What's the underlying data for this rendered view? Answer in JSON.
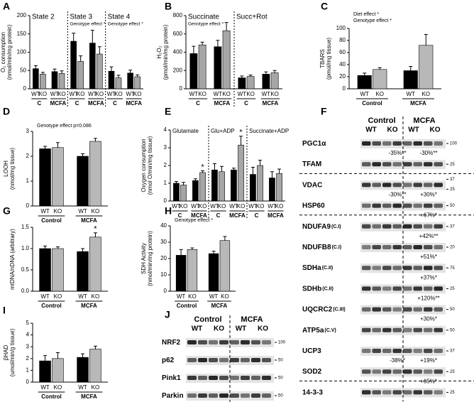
{
  "chart_data": [
    {
      "panel": "A",
      "type": "bar",
      "ylabel": [
        "O₂ consumption",
        "(nmol/min/mg protein)"
      ],
      "sections": [
        "State 2",
        "State 3",
        "State 4"
      ],
      "section_notes": [
        null,
        "Genotype effect *",
        "Genotype effect *"
      ],
      "categories": [
        "C",
        "MCFA",
        "C",
        "MCFA",
        "C",
        "MCFA"
      ],
      "series": [
        {
          "name": "WT",
          "color": "#000000",
          "values": [
            55,
            47,
            130,
            125,
            48,
            43
          ],
          "errors": [
            8,
            7,
            22,
            35,
            12,
            8
          ]
        },
        {
          "name": "KO",
          "color": "#a6a6a6",
          "values": [
            40,
            42,
            75,
            95,
            30,
            33
          ],
          "errors": [
            5,
            7,
            15,
            20,
            7,
            5
          ]
        }
      ],
      "ylim": [
        0,
        200
      ],
      "yticks": [
        0,
        50,
        100,
        150,
        200
      ]
    },
    {
      "panel": "B",
      "type": "bar",
      "ylabel": [
        "H₂O₂",
        "(pmol/min/mg protein)"
      ],
      "sections": [
        "Succinate",
        "Succ+Rot"
      ],
      "section_notes": [
        "Genotype effect *",
        null
      ],
      "categories": [
        "C",
        "MCFA",
        "C",
        "MCFA"
      ],
      "series": [
        {
          "name": "WT",
          "color": "#000000",
          "values": [
            385,
            460,
            120,
            160
          ],
          "errors": [
            80,
            70,
            20,
            25
          ]
        },
        {
          "name": "KO",
          "color": "#a6a6a6",
          "values": [
            480,
            635,
            135,
            175
          ],
          "errors": [
            30,
            90,
            15,
            25
          ]
        }
      ],
      "ylim": [
        0,
        800
      ],
      "yticks": [
        0,
        200,
        400,
        600,
        800
      ]
    },
    {
      "panel": "C",
      "type": "bar",
      "ylabel": [
        "TBARS",
        "(pmol/mg tissue)"
      ],
      "notes": [
        "Diet effect *",
        "Genotype effect *"
      ],
      "categories": [
        "Control",
        "MCFA"
      ],
      "series": [
        {
          "name": "WT",
          "color": "#000000",
          "values": [
            22,
            30
          ],
          "errors": [
            4,
            7
          ]
        },
        {
          "name": "KO",
          "color": "#b8b8b8",
          "values": [
            32,
            72
          ],
          "errors": [
            3,
            18
          ]
        }
      ],
      "ylim": [
        0,
        100
      ],
      "yticks": [
        0,
        20,
        40,
        60,
        80,
        100
      ]
    },
    {
      "panel": "D",
      "type": "bar",
      "ylabel": [
        "LOOH",
        "(nmol/mg tissue)"
      ],
      "notes": [
        "Genotype effect p=0.086"
      ],
      "categories": [
        "Control",
        "MCFA"
      ],
      "series": [
        {
          "name": "WT",
          "color": "#000000",
          "values": [
            2.3,
            2.0
          ],
          "errors": [
            0.1,
            0.1
          ]
        },
        {
          "name": "KO",
          "color": "#b8b8b8",
          "values": [
            2.35,
            2.6
          ],
          "errors": [
            0.2,
            0.12
          ]
        }
      ],
      "ylim": [
        0,
        3
      ],
      "yticks": [
        0,
        1,
        2,
        3
      ]
    },
    {
      "panel": "E",
      "type": "bar",
      "ylabel": [
        "Oxygen consumption",
        "(nmol O/min/mg tissue)"
      ],
      "sections": [
        "Glutamate",
        "Glu+ADP",
        "Succinate+ADP"
      ],
      "categories": [
        "C",
        "MCFA",
        "C",
        "MCFA",
        "C",
        "MCFA"
      ],
      "series": [
        {
          "name": "WT",
          "color": "#000000",
          "values": [
            1.0,
            1.15,
            1.75,
            1.75,
            1.5,
            1.3
          ],
          "errors": [
            0.1,
            0.1,
            0.35,
            0.1,
            0.4,
            0.35
          ]
        },
        {
          "name": "KO",
          "color": "#a6a6a6",
          "values": [
            0.9,
            1.6,
            1.65,
            3.15,
            2.0,
            1.55
          ],
          "errors": [
            0.15,
            0.1,
            0.3,
            0.5,
            0.3,
            0.25
          ],
          "stars": [
            null,
            "*",
            null,
            "*",
            null,
            null
          ]
        }
      ],
      "ylim": [
        0,
        4
      ],
      "yticks": [
        0,
        1,
        2,
        3,
        4
      ]
    },
    {
      "panel": "G",
      "type": "bar",
      "ylabel": [
        "mtDNA/nDNA (arbitrary)"
      ],
      "categories": [
        "Control",
        "MCFA"
      ],
      "series": [
        {
          "name": "WT",
          "color": "#000000",
          "values": [
            1.0,
            0.93
          ],
          "errors": [
            0.06,
            0.07
          ]
        },
        {
          "name": "KO",
          "color": "#b8b8b8",
          "values": [
            1.0,
            1.27
          ],
          "errors": [
            0.04,
            0.1
          ],
          "stars": [
            null,
            "*"
          ]
        }
      ],
      "ylim": [
        0,
        1.5
      ],
      "yticks": [
        {
          "value": 0,
          "label": "0.0"
        },
        0.5,
        {
          "value": 1,
          "label": "1.0"
        },
        1.5
      ]
    },
    {
      "panel": "H",
      "type": "bar",
      "ylabel": [
        "SDH Activity",
        "(nmol/min/mg protein)"
      ],
      "notes": [
        "Genotype effect *"
      ],
      "categories": [
        "Control",
        "MCFA"
      ],
      "series": [
        {
          "name": "WT",
          "color": "#000000",
          "values": [
            22,
            23
          ],
          "errors": [
            3.5,
            1.5
          ]
        },
        {
          "name": "KO",
          "color": "#b8b8b8",
          "values": [
            25.5,
            31
          ],
          "errors": [
            1,
            2.5
          ]
        }
      ],
      "ylim": [
        0,
        40
      ],
      "yticks": [
        0,
        10,
        20,
        30,
        40
      ]
    },
    {
      "panel": "I",
      "type": "bar",
      "ylabel": [
        "βHAD",
        "(umol/min/g tissue)"
      ],
      "categories": [
        "Control",
        "MCFA"
      ],
      "series": [
        {
          "name": "WT",
          "color": "#000000",
          "values": [
            1.8,
            2.1
          ],
          "errors": [
            0.45,
            0.3
          ]
        },
        {
          "name": "KO",
          "color": "#b8b8b8",
          "values": [
            2.0,
            2.8
          ],
          "errors": [
            0.5,
            0.25
          ]
        }
      ],
      "ylim": [
        0,
        5
      ],
      "yticks": [
        0,
        1,
        2,
        3,
        4,
        5
      ]
    }
  ],
  "blots": [
    {
      "panel": "F",
      "groups": [
        "Control",
        "MCFA"
      ],
      "genotypes": [
        "WT",
        "KO",
        "WT",
        "KO"
      ],
      "sections": [
        [
          {
            "label": "PGC1α",
            "mw": [
              100
            ],
            "control_note": "-35%**",
            "mcfa_note": "-30%**"
          },
          {
            "label": "TFAM",
            "mw": [
              25
            ]
          }
        ],
        [
          {
            "label": "VDAC",
            "mw": [
              37,
              25
            ],
            "control_note": "-30%**",
            "mcfa_note": "+30%*"
          },
          {
            "label": "HSP60",
            "mw": [
              50
            ],
            "mcfa_note": "+67%*"
          }
        ],
        [
          {
            "label": "NDUFA9",
            "complex": "(C.I)",
            "mw": [
              37
            ],
            "mcfa_note": "+42%**"
          },
          {
            "label": "NDUFB8",
            "complex": "(C.I)",
            "mw": [
              20
            ],
            "mcfa_note": "+51%*"
          },
          {
            "label": "SDHa",
            "complex": "(C.II)",
            "mw": [
              75
            ],
            "mcfa_note": "+37%*"
          },
          {
            "label": "SDHb",
            "complex": "(C.II)",
            "mw": [
              25
            ],
            "mcfa_note": "+120%**"
          },
          {
            "label": "UQCRC2",
            "complex": "(C.III)",
            "mw": [
              50
            ],
            "mcfa_note": "+30%*"
          },
          {
            "label": "ATP5a",
            "complex": "(C.V)",
            "mw": [
              50
            ]
          },
          {
            "label": "UCP3",
            "mw": [
              37
            ],
            "control_note": "-38%*",
            "mcfa_note": "+19%*"
          },
          {
            "label": "SOD2",
            "mw": [
              25
            ],
            "mcfa_note": "+65%*"
          }
        ],
        [
          {
            "label": "14-3-3",
            "mw": [
              25
            ]
          }
        ]
      ]
    },
    {
      "panel": "J",
      "groups": [
        "Control",
        "MCFA"
      ],
      "genotypes": [
        "WT",
        "KO",
        "WT",
        "KO"
      ],
      "sections": [
        [
          {
            "label": "NRF2",
            "mw": [
              100
            ]
          },
          {
            "label": "p62",
            "mw": [
              50
            ]
          },
          {
            "label": "Pink1",
            "mw": [
              50
            ]
          },
          {
            "label": "Parkin",
            "mw": [
              50
            ]
          }
        ]
      ]
    }
  ]
}
